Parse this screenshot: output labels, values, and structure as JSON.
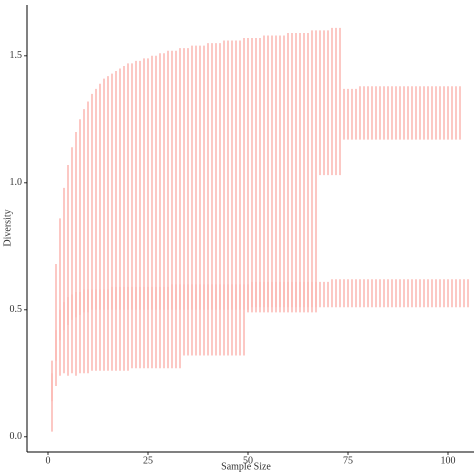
{
  "chart_data": {
    "type": "errorbar",
    "xlabel": "Sample Size",
    "ylabel": "Diversity",
    "xlim": [
      -5.25,
      106.5
    ],
    "ylim": [
      -0.06,
      1.7
    ],
    "xticks": [
      0,
      25,
      50,
      75,
      100
    ],
    "yticks": [
      {
        "value": 0,
        "label": "0.0"
      },
      {
        "value": 0.5,
        "label": "0.5"
      },
      {
        "value": 1,
        "label": "1.0"
      },
      {
        "value": 1.5,
        "label": "1.5"
      }
    ],
    "x": [
      1,
      2,
      3,
      4,
      5,
      6,
      7,
      8,
      9,
      10,
      11,
      12,
      13,
      14,
      15,
      16,
      17,
      18,
      19,
      20,
      21,
      22,
      23,
      24,
      25,
      26,
      27,
      28,
      29,
      30,
      31,
      32,
      33,
      34,
      35,
      36,
      37,
      38,
      39,
      40,
      41,
      42,
      43,
      44,
      45,
      46,
      47,
      48,
      49,
      50,
      51,
      52,
      53,
      54,
      55,
      56,
      57,
      58,
      59,
      60,
      61,
      62,
      63,
      64,
      65,
      66,
      67,
      68,
      69,
      70,
      71,
      72,
      73,
      74,
      75,
      76,
      77,
      78,
      79,
      80,
      81,
      82,
      83,
      84,
      85,
      86,
      87,
      88,
      89,
      90,
      91,
      92,
      93,
      94,
      95,
      96,
      97,
      98,
      99,
      100,
      101,
      102,
      103,
      104,
      105
    ],
    "series": [
      {
        "color": "#f8766d",
        "upper": [
          0.3,
          0.68,
          0.86,
          0.98,
          1.07,
          1.14,
          1.2,
          1.25,
          1.29,
          1.32,
          1.35,
          1.37,
          1.39,
          1.41,
          1.42,
          1.43,
          1.44,
          1.45,
          1.46,
          1.47,
          1.47,
          1.48,
          1.48,
          1.49,
          1.49,
          1.5,
          1.5,
          1.51,
          1.51,
          1.52,
          1.52,
          1.52,
          1.53,
          1.53,
          1.53,
          1.54,
          1.54,
          1.54,
          1.54,
          1.55,
          1.55,
          1.55,
          1.55,
          1.56,
          1.56,
          1.56,
          1.56,
          1.56,
          1.57,
          1.57,
          1.57,
          1.57,
          1.57,
          1.58,
          1.58,
          1.58,
          1.58,
          1.58,
          1.58,
          1.59,
          1.59,
          1.59,
          1.59,
          1.59,
          1.59,
          1.6,
          1.6,
          1.6,
          1.6,
          1.6,
          1.61,
          1.61,
          1.61,
          1.37,
          1.37,
          1.37,
          1.37,
          1.38,
          1.38,
          1.38,
          1.38,
          1.38,
          1.38,
          1.38,
          1.38,
          1.38,
          1.38,
          1.38,
          1.38,
          1.38,
          1.38,
          1.38,
          1.38,
          1.38,
          1.38,
          1.38,
          1.38,
          1.38,
          1.38,
          1.38,
          1.38,
          1.38,
          1.38
        ],
        "lower": [
          0.02,
          0.2,
          0.24,
          0.25,
          0.24,
          0.25,
          0.24,
          0.25,
          0.25,
          0.25,
          0.26,
          0.26,
          0.26,
          0.26,
          0.26,
          0.26,
          0.26,
          0.26,
          0.26,
          0.26,
          0.27,
          0.27,
          0.27,
          0.27,
          0.27,
          0.27,
          0.27,
          0.27,
          0.27,
          0.27,
          0.27,
          0.27,
          0.27,
          0.32,
          0.32,
          0.32,
          0.32,
          0.32,
          0.32,
          0.32,
          0.32,
          0.32,
          0.32,
          0.32,
          0.32,
          0.32,
          0.32,
          0.32,
          0.32,
          0.49,
          0.49,
          0.49,
          0.49,
          0.49,
          0.49,
          0.49,
          0.49,
          0.49,
          0.49,
          0.49,
          0.49,
          0.49,
          0.49,
          0.49,
          0.49,
          0.49,
          0.49,
          1.03,
          1.03,
          1.03,
          1.03,
          1.03,
          1.03,
          1.17,
          1.17,
          1.17,
          1.17,
          1.17,
          1.17,
          1.17,
          1.17,
          1.17,
          1.17,
          1.17,
          1.17,
          1.17,
          1.17,
          1.17,
          1.17,
          1.17,
          1.17,
          1.17,
          1.17,
          1.17,
          1.17,
          1.17,
          1.17,
          1.17,
          1.17,
          1.17,
          1.17,
          1.17,
          1.17
        ]
      },
      {
        "color": "#f8766d",
        "upper": [
          0.25,
          0.42,
          0.5,
          0.53,
          0.55,
          0.56,
          0.57,
          0.57,
          0.58,
          0.58,
          0.58,
          0.58,
          0.58,
          0.58,
          0.58,
          0.59,
          0.59,
          0.59,
          0.59,
          0.59,
          0.59,
          0.59,
          0.59,
          0.59,
          0.59,
          0.59,
          0.59,
          0.59,
          0.59,
          0.59,
          0.6,
          0.6,
          0.6,
          0.6,
          0.6,
          0.6,
          0.6,
          0.6,
          0.6,
          0.6,
          0.6,
          0.6,
          0.6,
          0.6,
          0.6,
          0.6,
          0.6,
          0.6,
          0.6,
          0.6,
          0.61,
          0.61,
          0.61,
          0.61,
          0.61,
          0.61,
          0.61,
          0.61,
          0.61,
          0.61,
          0.61,
          0.61,
          0.61,
          0.61,
          0.61,
          0.61,
          0.61,
          0.61,
          0.61,
          0.61,
          0.62,
          0.62,
          0.62,
          0.62,
          0.62,
          0.62,
          0.62,
          0.62,
          0.62,
          0.62,
          0.62,
          0.62,
          0.62,
          0.62,
          0.62,
          0.62,
          0.62,
          0.62,
          0.62,
          0.62,
          0.62,
          0.62,
          0.62,
          0.62,
          0.62,
          0.62,
          0.62,
          0.62,
          0.62,
          0.62,
          0.62,
          0.62,
          0.62,
          0.62,
          0.62
        ],
        "lower": [
          0.14,
          0.3,
          0.38,
          0.42,
          0.44,
          0.46,
          0.47,
          0.48,
          0.49,
          0.49,
          0.5,
          0.5,
          0.5,
          0.5,
          0.5,
          0.5,
          0.5,
          0.5,
          0.5,
          0.5,
          0.5,
          0.5,
          0.5,
          0.5,
          0.5,
          0.5,
          0.5,
          0.5,
          0.5,
          0.5,
          0.5,
          0.5,
          0.5,
          0.5,
          0.5,
          0.5,
          0.5,
          0.5,
          0.5,
          0.5,
          0.5,
          0.5,
          0.5,
          0.5,
          0.5,
          0.5,
          0.5,
          0.5,
          0.5,
          0.5,
          0.51,
          0.51,
          0.51,
          0.51,
          0.51,
          0.51,
          0.51,
          0.51,
          0.51,
          0.51,
          0.51,
          0.51,
          0.51,
          0.51,
          0.51,
          0.51,
          0.51,
          0.51,
          0.51,
          0.51,
          0.51,
          0.51,
          0.51,
          0.51,
          0.51,
          0.51,
          0.51,
          0.51,
          0.51,
          0.51,
          0.51,
          0.51,
          0.51,
          0.51,
          0.51,
          0.51,
          0.51,
          0.51,
          0.51,
          0.51,
          0.51,
          0.51,
          0.51,
          0.51,
          0.51,
          0.51,
          0.51,
          0.51,
          0.51,
          0.51,
          0.51,
          0.51,
          0.51,
          0.51,
          0.51
        ]
      }
    ]
  }
}
